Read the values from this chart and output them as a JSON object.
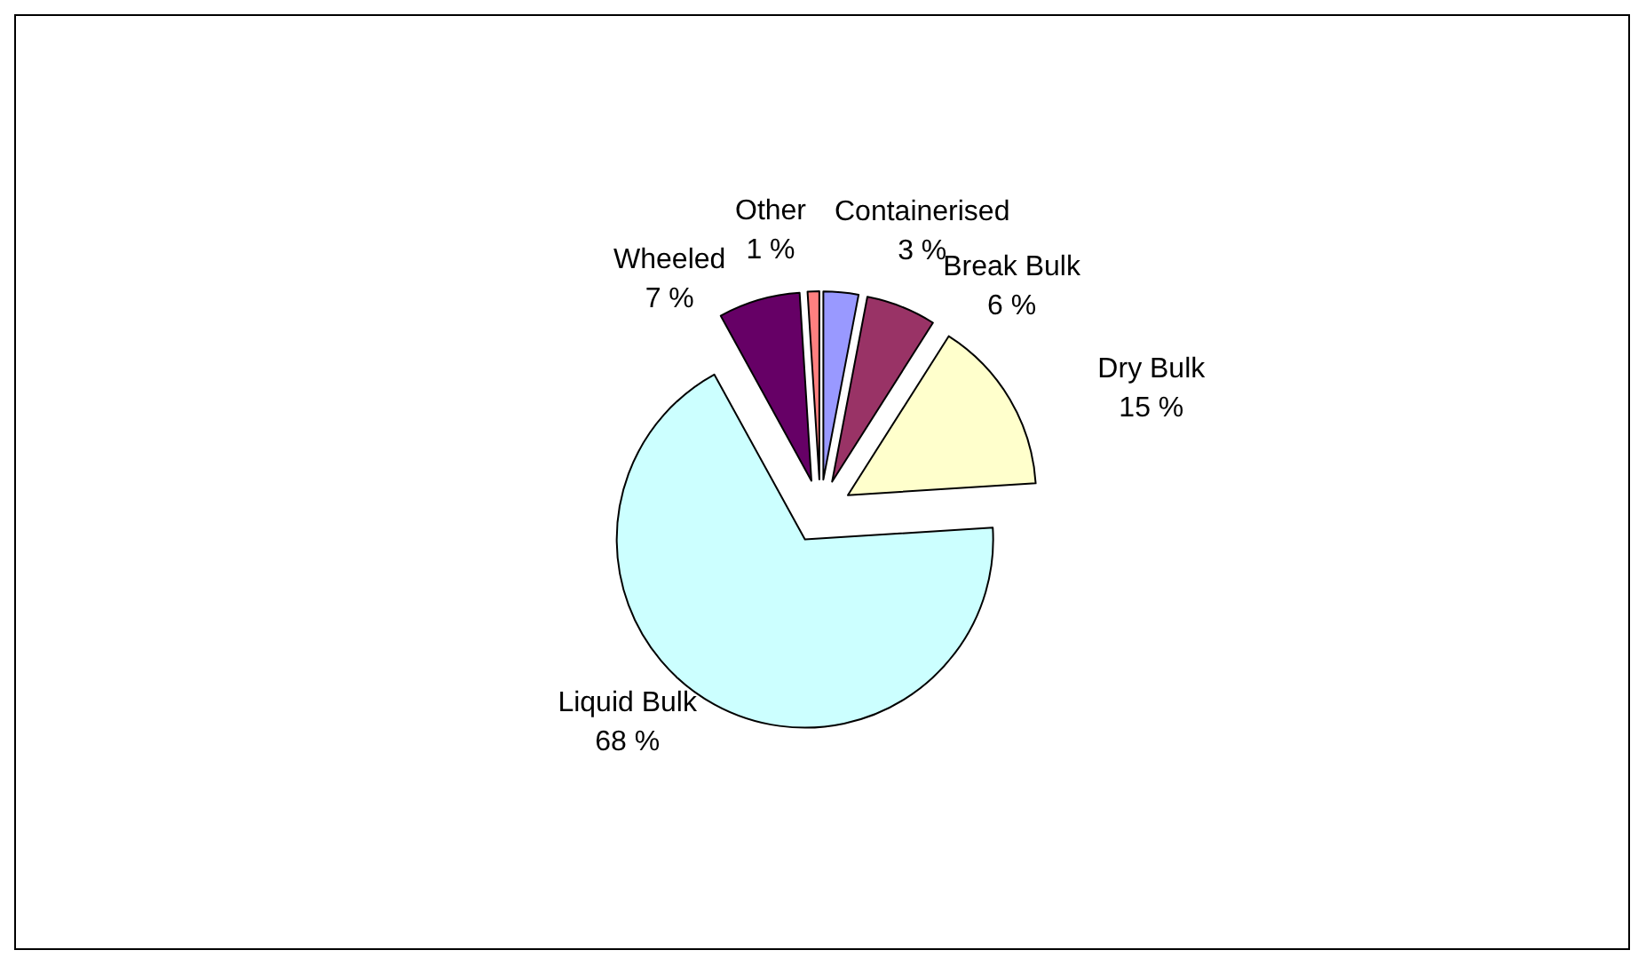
{
  "chart_data": {
    "type": "pie",
    "categories": [
      "Containerised",
      "Break Bulk",
      "Dry Bulk",
      "Liquid Bulk",
      "Wheeled",
      "Other"
    ],
    "values": [
      3,
      6,
      15,
      68,
      7,
      1
    ],
    "value_labels": [
      "3 %",
      "6 %",
      "15 %",
      "68 %",
      "7 %",
      "1 %"
    ],
    "colors": [
      "#9999ff",
      "#993366",
      "#ffffcc",
      "#ccffff",
      "#660066",
      "#ff8080"
    ],
    "legend": false
  }
}
